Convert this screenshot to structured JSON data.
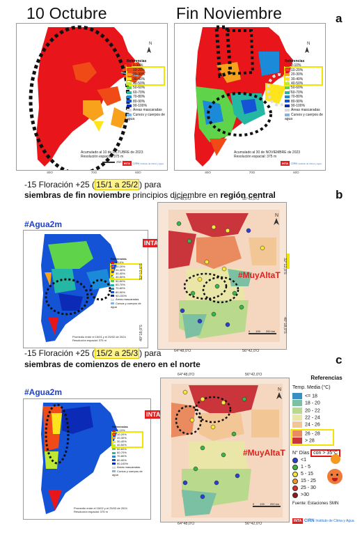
{
  "panel_a": {
    "letter": "a",
    "title_left": "10 Octubre",
    "title_right": "Fin Noviembre",
    "legend_title": "Referencias",
    "legend_items": [
      "0-10%",
      "10-20%",
      "20-30%",
      "30-40%",
      "40-50%",
      "50-60%",
      "60-70%",
      "70-80%",
      "80-90%",
      "90-100%",
      "Áreas mascaradas",
      "Cursos y cuerpos de agua"
    ],
    "legend_colors": [
      "#e8151b",
      "#f04a16",
      "#f7a21a",
      "#fde41c",
      "#bde835",
      "#5fd34a",
      "#23b7a4",
      "#1b8ad8",
      "#1553d6",
      "#0b2ab5",
      "#d8d8d8",
      "#7fb6e8"
    ],
    "caption_left": [
      "Acumulado al 10 de OCTUBRE de 2023",
      "Resolución espacial: 375 m"
    ],
    "caption_right": [
      "Acumulado al 30 de NOVIEMBRE de 2023",
      "Resolución espacial: 375 m"
    ],
    "scale": "250 km",
    "axis_x": [
      "80O",
      "70O",
      "60O"
    ],
    "axis_x_right": [
      "80O",
      "70O",
      "60O"
    ],
    "logo": "INTA",
    "logo2": "CIRN",
    "logo2_sub": "Instituto de Clima y Agua"
  },
  "panel_b": {
    "letter": "b",
    "line1_pre": "-15 Floración +25 (",
    "line1_hl": "15/1 a 25/2",
    "line1_post": ") para",
    "line2_bold1": "siembras de fin noviembre",
    "line2_mid": " principios diciembre en ",
    "line2_bold2": "región central",
    "agua_label": "#Agua2m",
    "muy_label": "#MuyAltaT",
    "caption": [
      "Promedio entre el 15/01 y el 25/02 de 2024",
      "Resolución espacial: 375 m"
    ],
    "coords_top": [
      "64°48,0'O",
      "56°42,0'O"
    ],
    "coords_bottom": [
      "64°48,0'O",
      "56°42,0'O"
    ],
    "coords_left": [
      "32°12,0'S",
      "40°18,0'S"
    ],
    "coords_right": [
      "32°12,0'S",
      "40°18,0'S"
    ],
    "scale_km": [
      "0",
      "100",
      "200 km"
    ],
    "logo": "INTA"
  },
  "panel_c": {
    "letter": "c",
    "line1_pre": "-15 Floración +25 (",
    "line1_hl": "15/2 a 25/3",
    "line1_post": ") para",
    "line2_bold": "siembras de comienzos de enero en el norte",
    "agua_label": "#Agua2m",
    "muy_label": "#MuyAltaT",
    "caption": [
      "Promedio entre el 15/02 y el 25/03 de 2024",
      "Resolución espacial: 375 m"
    ],
    "coords_top": [
      "64°48,0'O",
      "56°42,0'O"
    ],
    "coords_bottom": [
      "64°48,0'O",
      "56°42,0'O"
    ],
    "scale_km": [
      "0",
      "100",
      "200 km"
    ],
    "logo": "INTA",
    "logo2": "CIRN",
    "logo2_sub": "Instituto de Clima y Agua"
  },
  "temp_legend": {
    "title": "Referencias",
    "subtitle": "Temp. Media (°C)",
    "items": [
      "<= 18",
      "18 - 20",
      "20 - 22",
      "22 - 24",
      "24 - 26",
      "26 - 28",
      "> 28"
    ],
    "colors": [
      "#3a8fc2",
      "#7cc0a4",
      "#b9d98c",
      "#e9e6a8",
      "#f3c795",
      "#e98b5e",
      "#c9353a"
    ],
    "dias_title": "N° Días",
    "dias_box": "con > 35°C",
    "dias_items": [
      "<1",
      "1 - 5",
      "5 - 15",
      "15 - 25",
      "25 - 30",
      ">30"
    ],
    "dias_colors": [
      "#2b3fd1",
      "#3bb54a",
      "#f6e83a",
      "#f39a22",
      "#d92d2d",
      "#8b1a1a"
    ],
    "fuente": "Fuente: Estaciones SMN"
  }
}
